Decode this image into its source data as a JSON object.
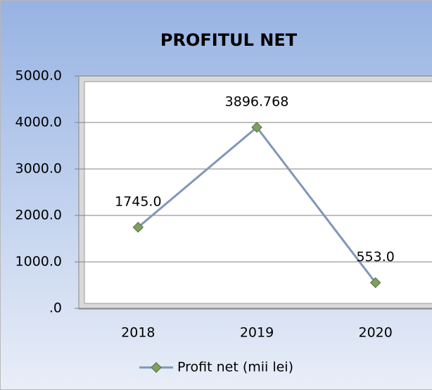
{
  "chart_data": {
    "type": "line",
    "title": "PROFITUL NET",
    "categories": [
      "2018",
      "2019",
      "2020"
    ],
    "series": [
      {
        "name": "Profit net (mii lei)",
        "color": "#8097b9",
        "marker_color": "#7f9f5c",
        "values": [
          1745.0,
          3896.768,
          553.0
        ],
        "value_labels": [
          "1745.0",
          "3896.768",
          "553.0"
        ]
      }
    ],
    "ylim": [
      0,
      5000
    ],
    "yticks": [
      {
        "value": 0,
        "label": ".0"
      },
      {
        "value": 1000,
        "label": "1000.0"
      },
      {
        "value": 2000,
        "label": "2000.0"
      },
      {
        "value": 3000,
        "label": "3000.0"
      },
      {
        "value": 4000,
        "label": "4000.0"
      },
      {
        "value": 5000,
        "label": "5000.0"
      }
    ],
    "grid": true,
    "legend": "bottom"
  }
}
